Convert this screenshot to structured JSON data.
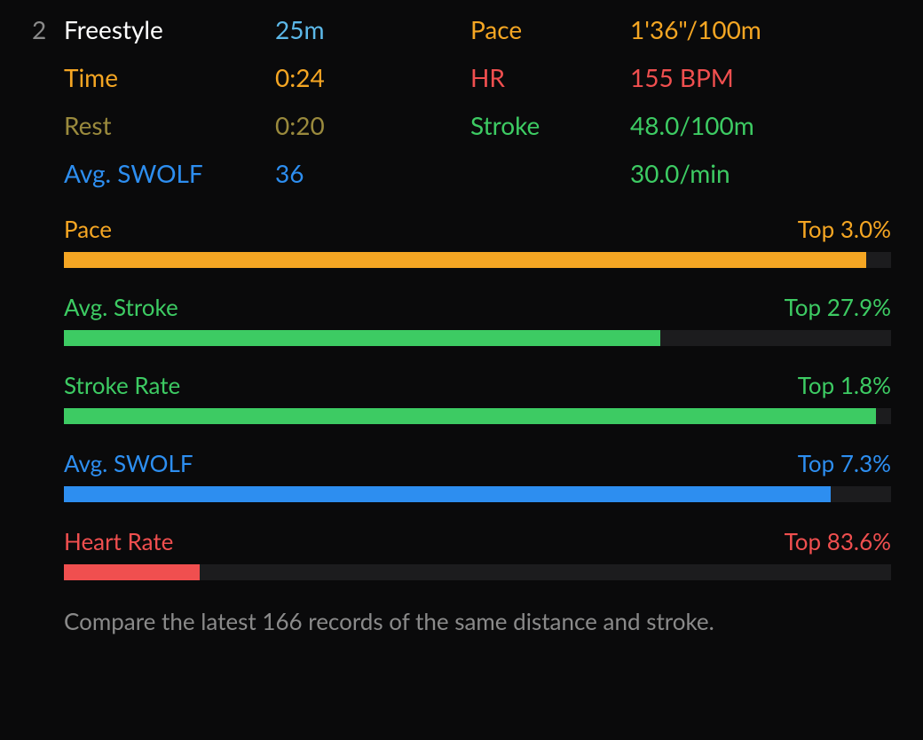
{
  "colors": {
    "background": "#0a0a0b",
    "white": "#ffffff",
    "skyblue": "#5cb8e8",
    "orange": "#f5a623",
    "olive": "#9a8a3d",
    "red": "#f04f4f",
    "green": "#3dcb63",
    "blue": "#2d8ef0",
    "gray": "#8a8a8a",
    "track": "#1c1c1e"
  },
  "header": {
    "index": "2",
    "stroke_type": "Freestyle",
    "distance": "25m",
    "rows": [
      {
        "label_left": "Time",
        "label_left_color": "orange",
        "value_left": "0:24",
        "value_left_color": "orange",
        "label_right": "Pace",
        "label_right_color": "orange",
        "value_right": "1'36\"/100m",
        "value_right_color": "orange",
        "row_offset": -1
      },
      {
        "label_left": "Rest",
        "label_left_color": "olive",
        "value_left": "0:20",
        "value_left_color": "olive",
        "label_right": "HR",
        "label_right_color": "red",
        "value_right": "155 BPM",
        "value_right_color": "red"
      },
      {
        "label_left": "Avg. SWOLF",
        "label_left_color": "blue",
        "value_left": "36",
        "value_left_color": "blue",
        "label_right": "Stroke",
        "label_right_color": "green",
        "value_right": "48.0/100m",
        "value_right_color": "green"
      },
      {
        "label_left": "",
        "label_left_color": "",
        "value_left": "",
        "value_left_color": "",
        "label_right": "",
        "label_right_color": "",
        "value_right": "30.0/min",
        "value_right_color": "green"
      }
    ]
  },
  "bars": [
    {
      "label": "Pace",
      "rank": "Top 3.0%",
      "color": "orange",
      "fill_pct": 97.0
    },
    {
      "label": "Avg. Stroke",
      "rank": "Top 27.9%",
      "color": "green",
      "fill_pct": 72.1
    },
    {
      "label": "Stroke Rate",
      "rank": "Top 1.8%",
      "color": "green",
      "fill_pct": 98.2
    },
    {
      "label": "Avg. SWOLF",
      "rank": "Top 7.3%",
      "color": "blue",
      "fill_pct": 92.7
    },
    {
      "label": "Heart Rate",
      "rank": "Top 83.6%",
      "color": "red",
      "fill_pct": 16.4
    }
  ],
  "footnote": "Compare the latest 166 records of the same distance and stroke."
}
